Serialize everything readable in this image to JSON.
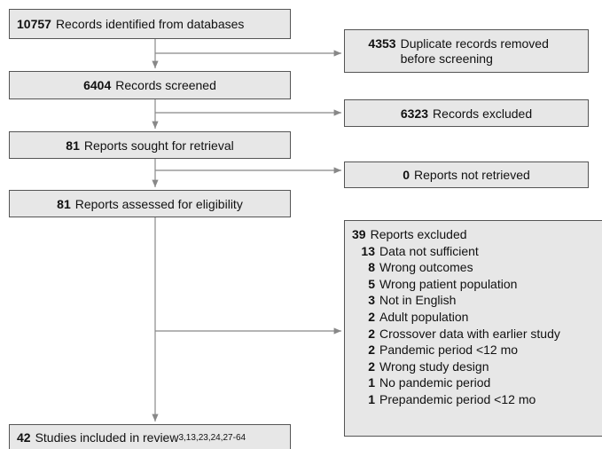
{
  "flow": {
    "identified": {
      "count": 10757,
      "label": "Records identified from databases"
    },
    "duplicates": {
      "count": 4353,
      "label": "Duplicate records removed before screening"
    },
    "screened": {
      "count": 6404,
      "label": "Records screened"
    },
    "screen_excluded": {
      "count": 6323,
      "label": "Records excluded"
    },
    "sought": {
      "count": 81,
      "label": "Reports sought for retrieval"
    },
    "not_retrieved": {
      "count": 0,
      "label": "Reports not retrieved"
    },
    "assessed": {
      "count": 81,
      "label": "Reports assessed for eligibility"
    },
    "reports_excluded": {
      "count": 39,
      "label": "Reports excluded",
      "reasons": [
        {
          "count": 13,
          "label": "Data not sufficient"
        },
        {
          "count": 8,
          "label": "Wrong outcomes"
        },
        {
          "count": 5,
          "label": "Wrong patient population"
        },
        {
          "count": 3,
          "label": "Not in English"
        },
        {
          "count": 2,
          "label": "Adult population"
        },
        {
          "count": 2,
          "label": "Crossover data with earlier study"
        },
        {
          "count": 2,
          "label": "Pandemic period <12 mo"
        },
        {
          "count": 2,
          "label": "Wrong study design"
        },
        {
          "count": 1,
          "label": "No pandemic period"
        },
        {
          "count": 1,
          "label": "Prepandemic period <12 mo"
        }
      ]
    },
    "included": {
      "count": 42,
      "label": "Studies included in review",
      "refs": "3,13,23,24,27-64"
    }
  }
}
